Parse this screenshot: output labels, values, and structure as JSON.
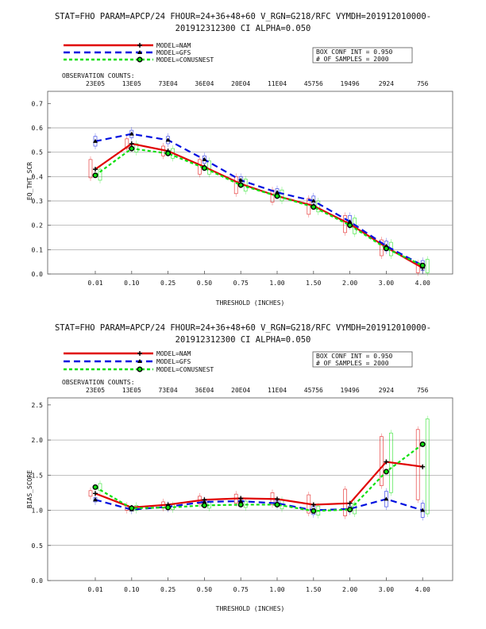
{
  "charts": [
    {
      "title_line1": "STAT=FHO PARAM=APCP/24 FHOUR=24+36+48+60 V_RGN=G218/RFC VYMDH=201912010000-",
      "title_line2": "201912312300 CI ALPHA=0.050",
      "legend": [
        "MODEL=NAM",
        "MODEL=GFS",
        "MODEL=CONUSNEST"
      ],
      "box_info": [
        "BOX CONF INT = 0.950",
        "# OF SAMPLES =  2000"
      ],
      "obs_title": "OBSERVATION COUNTS:",
      "obs_counts": [
        "23E05",
        "13E05",
        "73E04",
        "36E04",
        "20E04",
        "11E04",
        "45756",
        "19496",
        "2924",
        "756"
      ],
      "ylabel": "EQ_THT_SCR",
      "xlabel": "THRESHOLD (INCHES)"
    },
    {
      "title_line1": "STAT=FHO PARAM=APCP/24 FHOUR=24+36+48+60 V_RGN=G218/RFC VYMDH=201912010000-",
      "title_line2": "201912312300 CI ALPHA=0.050",
      "legend": [
        "MODEL=NAM",
        "MODEL=GFS",
        "MODEL=CONUSNEST"
      ],
      "box_info": [
        "BOX CONF INT = 0.950",
        "# OF SAMPLES =  2000"
      ],
      "obs_title": "OBSERVATION COUNTS:",
      "obs_counts": [
        "23E05",
        "13E05",
        "73E04",
        "36E04",
        "20E04",
        "11E04",
        "45756",
        "19496",
        "2924",
        "756"
      ],
      "ylabel": "BIAS_SCORE",
      "xlabel": "THRESHOLD (INCHES)"
    }
  ],
  "colors": {
    "NAM": "#e00000",
    "GFS": "#0010e0",
    "CONUSNEST": "#10e010",
    "grid": "#9a9a9a"
  },
  "chart_data": [
    {
      "type": "line",
      "categories": [
        "0.01",
        "0.10",
        "0.25",
        "0.50",
        "0.75",
        "1.00",
        "1.50",
        "2.00",
        "3.00",
        "4.00"
      ],
      "ylim": [
        0,
        0.75
      ],
      "yticks": [
        "0.0",
        "0.1",
        "0.2",
        "0.3",
        "0.4",
        "0.5",
        "0.6",
        "0.7"
      ],
      "grid": true,
      "legend_position": "top-left",
      "series": [
        {
          "name": "MODEL=NAM",
          "values": [
            0.43,
            0.535,
            0.505,
            0.44,
            0.37,
            0.32,
            0.28,
            0.205,
            0.11,
            0.025
          ]
        },
        {
          "name": "MODEL=GFS",
          "values": [
            0.545,
            0.575,
            0.55,
            0.47,
            0.385,
            0.335,
            0.3,
            0.215,
            0.115,
            0.035
          ]
        },
        {
          "name": "MODEL=CONUSNEST",
          "values": [
            0.405,
            0.515,
            0.495,
            0.435,
            0.365,
            0.32,
            0.275,
            0.2,
            0.105,
            0.035
          ]
        }
      ],
      "boxes": [
        {
          "series": "MODEL=NAM",
          "low": [
            0.395,
            0.515,
            0.485,
            0.41,
            0.33,
            0.295,
            0.245,
            0.17,
            0.075,
            0.005
          ],
          "high": [
            0.47,
            0.555,
            0.525,
            0.47,
            0.4,
            0.345,
            0.31,
            0.24,
            0.14,
            0.045
          ]
        },
        {
          "series": "MODEL=GFS",
          "low": [
            0.525,
            0.56,
            0.535,
            0.455,
            0.37,
            0.32,
            0.28,
            0.195,
            0.095,
            0.015
          ],
          "high": [
            0.565,
            0.59,
            0.565,
            0.485,
            0.4,
            0.35,
            0.32,
            0.24,
            0.135,
            0.055
          ]
        },
        {
          "series": "MODEL=CONUSNEST",
          "low": [
            0.385,
            0.5,
            0.475,
            0.41,
            0.34,
            0.3,
            0.255,
            0.165,
            0.075,
            0.005
          ],
          "high": [
            0.43,
            0.535,
            0.515,
            0.465,
            0.39,
            0.345,
            0.3,
            0.23,
            0.13,
            0.06
          ]
        }
      ]
    },
    {
      "type": "line",
      "categories": [
        "0.01",
        "0.10",
        "0.25",
        "0.50",
        "0.75",
        "1.00",
        "1.50",
        "2.00",
        "3.00",
        "4.00"
      ],
      "ylim": [
        0,
        2.6
      ],
      "yticks": [
        "0.0",
        "0.5",
        "1.0",
        "1.5",
        "2.0",
        "2.5"
      ],
      "grid": true,
      "legend_position": "top-left",
      "series": [
        {
          "name": "MODEL=NAM",
          "values": [
            1.24,
            1.04,
            1.08,
            1.15,
            1.17,
            1.16,
            1.08,
            1.1,
            1.69,
            1.62
          ]
        },
        {
          "name": "MODEL=GFS",
          "values": [
            1.15,
            1.01,
            1.05,
            1.12,
            1.13,
            1.1,
            1.0,
            1.02,
            1.16,
            1.0
          ]
        },
        {
          "name": "MODEL=CONUSNEST",
          "values": [
            1.33,
            1.03,
            1.04,
            1.07,
            1.08,
            1.08,
            0.99,
            1.01,
            1.55,
            1.94
          ]
        }
      ],
      "boxes": [
        {
          "series": "MODEL=NAM",
          "low": [
            1.2,
            1.0,
            1.03,
            1.09,
            1.1,
            1.08,
            0.96,
            0.92,
            1.35,
            1.15
          ],
          "high": [
            1.28,
            1.07,
            1.12,
            1.2,
            1.23,
            1.25,
            1.22,
            1.3,
            2.05,
            2.15
          ]
        },
        {
          "series": "MODEL=GFS",
          "low": [
            1.12,
            0.99,
            1.02,
            1.09,
            1.1,
            1.06,
            0.94,
            0.98,
            1.05,
            0.9
          ]
        },
        {
          "series": "MODEL=CONUSNEST",
          "low": [
            1.28,
            1.0,
            1.01,
            1.03,
            1.04,
            1.02,
            0.93,
            0.95,
            1.25,
            0.95
          ],
          "high": [
            1.38,
            1.07,
            1.08,
            1.12,
            1.13,
            1.15,
            1.06,
            1.1,
            2.1,
            2.3
          ]
        }
      ]
    }
  ]
}
